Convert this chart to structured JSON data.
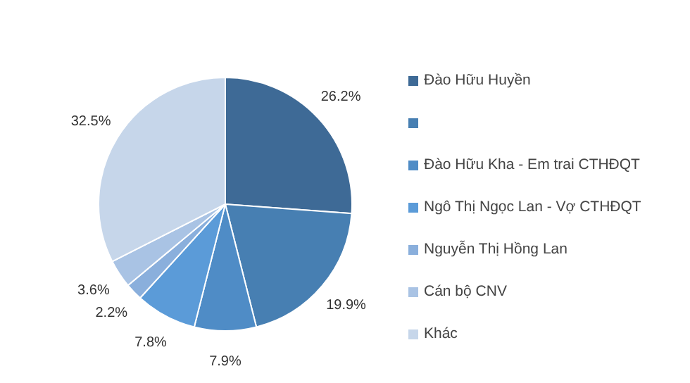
{
  "chart_data": {
    "type": "pie",
    "categories": [
      "Đào Hữu Huyền",
      null,
      "Đào Hữu Kha - Em trai CTHĐQT",
      "Ngô Thị Ngọc Lan - Vợ CTHĐQT",
      "Nguyễn Thị Hồng Lan",
      "Cán bộ CNV",
      "Khác"
    ],
    "values": [
      26.2,
      19.9,
      7.9,
      7.8,
      2.2,
      3.6,
      32.5
    ],
    "value_labels": [
      "26.2%",
      "19.9%",
      "7.9%",
      "7.8%",
      "2.2%",
      "3.6%",
      "32.5%"
    ],
    "colors": [
      "#3e6a96",
      "#477fb2",
      "#4f8cc6",
      "#5b9bd8",
      "#8aafdc",
      "#a9c3e4",
      "#c6d6ea"
    ],
    "legend": "right"
  }
}
